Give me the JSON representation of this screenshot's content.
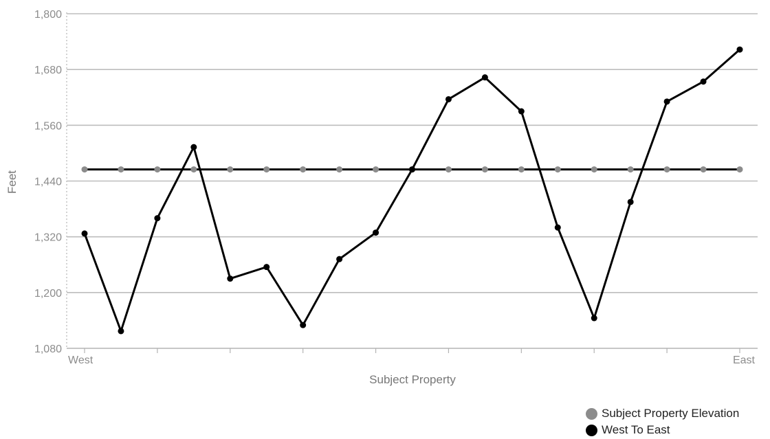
{
  "chart_data": {
    "type": "line",
    "title": "",
    "xlabel": "Subject Property",
    "ylabel": "Feet",
    "ylim": [
      1080,
      1800
    ],
    "yticks": [
      "1,080",
      "1,200",
      "1,320",
      "1,440",
      "1,560",
      "1,680",
      "1,800"
    ],
    "x_tick_labels": {
      "first": "West",
      "last": "East"
    },
    "grid": true,
    "legend_placement": "bottom-right",
    "series": [
      {
        "name": "Subject Property Elevation",
        "color": "#8c8c8c",
        "values": [
          1465,
          1465,
          1465,
          1465,
          1465,
          1465,
          1465,
          1465,
          1465,
          1465,
          1465,
          1465,
          1465,
          1465,
          1465,
          1465,
          1465,
          1465,
          1465
        ]
      },
      {
        "name": "West To East",
        "color": "#000000",
        "values": [
          1327,
          1117,
          1360,
          1513,
          1230,
          1255,
          1130,
          1272,
          1329,
          1465,
          1616,
          1663,
          1590,
          1340,
          1145,
          1395,
          1611,
          1654,
          1723
        ]
      }
    ]
  }
}
